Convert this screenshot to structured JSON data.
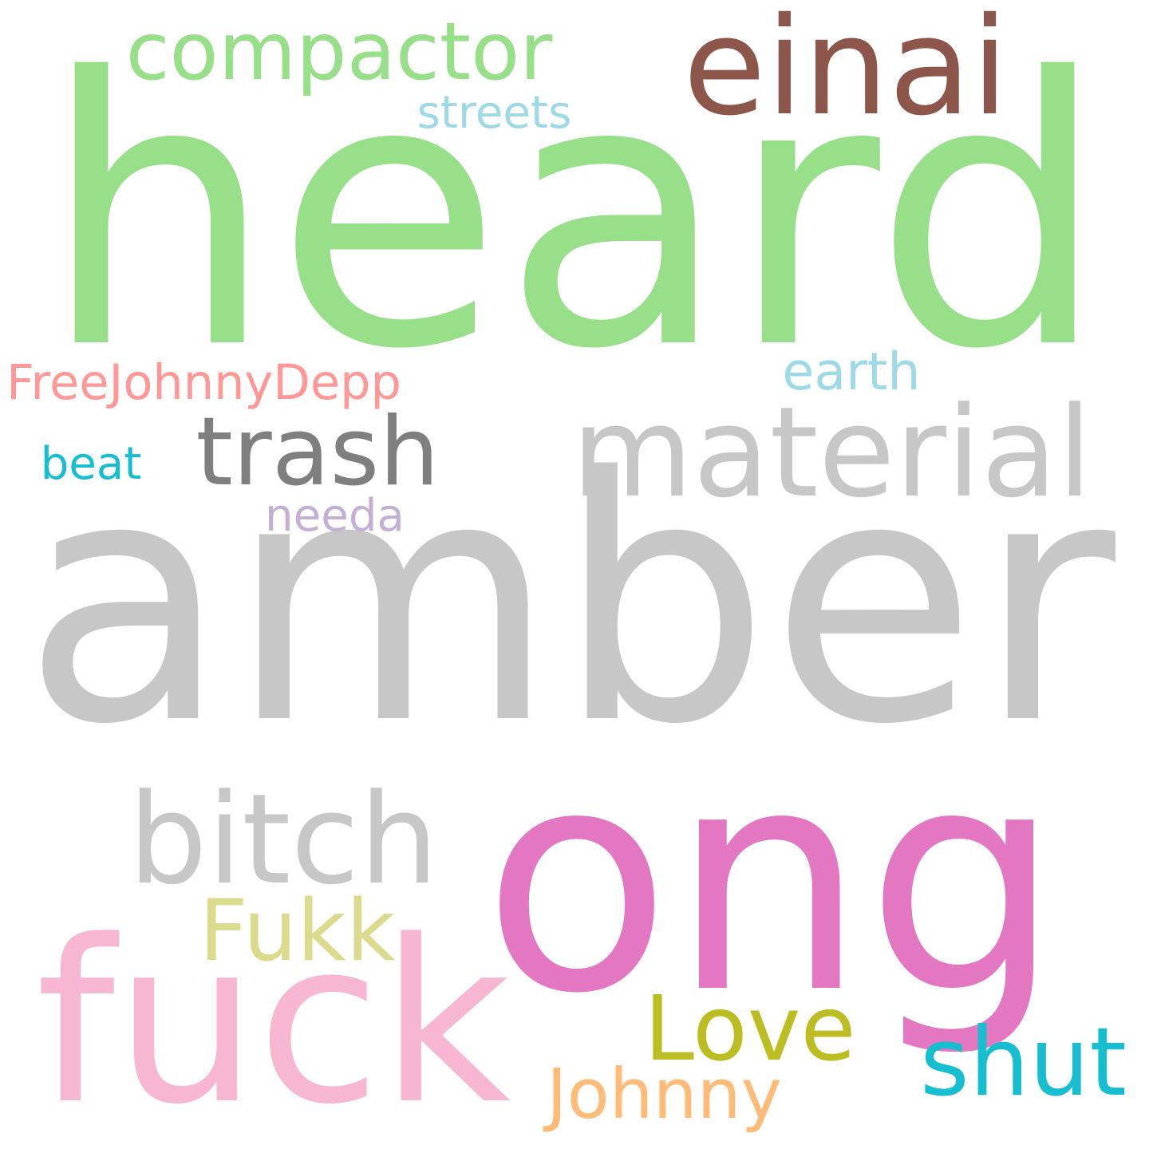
{
  "words": [
    {
      "text": "heard",
      "color": "#98df8a"
    },
    {
      "text": "amber",
      "color": "#c7c7c7"
    },
    {
      "text": "ong",
      "color": "#e377c2"
    },
    {
      "text": "fuck",
      "color": "#f7b6d2"
    },
    {
      "text": "einai",
      "color": "#8c564b"
    },
    {
      "text": "compactor",
      "color": "#98df8a"
    },
    {
      "text": "material",
      "color": "#c7c7c7"
    },
    {
      "text": "bitch",
      "color": "#c7c7c7"
    },
    {
      "text": "trash",
      "color": "#7f7f7f"
    },
    {
      "text": "Fukk",
      "color": "#dbdb8d"
    },
    {
      "text": "Love",
      "color": "#bcbd22"
    },
    {
      "text": "shut",
      "color": "#17becf"
    },
    {
      "text": "Johnny",
      "color": "#ffbb78"
    },
    {
      "text": "FreeJohnnyDepp",
      "color": "#ff9896"
    },
    {
      "text": "streets",
      "color": "#9edae5"
    },
    {
      "text": "earth",
      "color": "#9edae5"
    },
    {
      "text": "beat",
      "color": "#17becf"
    },
    {
      "text": "needa",
      "color": "#c5b0d5"
    }
  ]
}
